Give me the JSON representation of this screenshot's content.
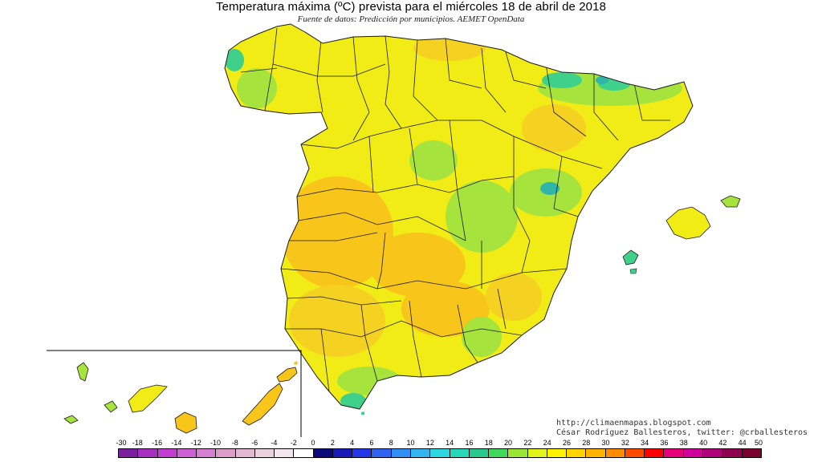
{
  "title": "Temperatura máxima (ºC) prevista para el miércoles 18 de abril de 2018",
  "subtitle": "Fuente de datos: Predicción por municipios. AEMET OpenData",
  "credit": {
    "line1": "http://climaenmapas.blogspot.com",
    "line2": "César Rodríguez Ballesteros, twitter: @crballesteros"
  },
  "legend": {
    "labels": [
      "-30",
      "-18",
      "-16",
      "-14",
      "-12",
      "-10",
      "-8",
      "-6",
      "-4",
      "-2",
      "0",
      "2",
      "4",
      "6",
      "8",
      "10",
      "12",
      "14",
      "16",
      "18",
      "20",
      "22",
      "24",
      "26",
      "28",
      "30",
      "32",
      "34",
      "36",
      "38",
      "40",
      "42",
      "44",
      "50"
    ],
    "colors": [
      "#7a1fa0",
      "#a62fc0",
      "#c13ed0",
      "#cf5fd6",
      "#d67fd0",
      "#dc9bc9",
      "#e2b8d2",
      "#ead1dc",
      "#f2e6ec",
      "#ffffff",
      "#0a0a7a",
      "#1a1ab8",
      "#2238e6",
      "#2f63f0",
      "#2f8ff2",
      "#33b5f0",
      "#2ed6e0",
      "#26d8b8",
      "#27c98e",
      "#3fd85a",
      "#9be632",
      "#e2f21a",
      "#fff200",
      "#ffd500",
      "#ffb200",
      "#ff8c00",
      "#ff4a00",
      "#ff0000",
      "#e6007a",
      "#d0009a",
      "#b0007a",
      "#8f0050",
      "#7a0030"
    ]
  },
  "map": {
    "colors": {
      "base": "#f2ec16",
      "warm": "#f8c51a",
      "warm2": "#f5d221",
      "cool": "#a6e33d",
      "cold": "#3fd08a",
      "coldest": "#2fb6a8",
      "border": "#1a1a1a"
    }
  }
}
